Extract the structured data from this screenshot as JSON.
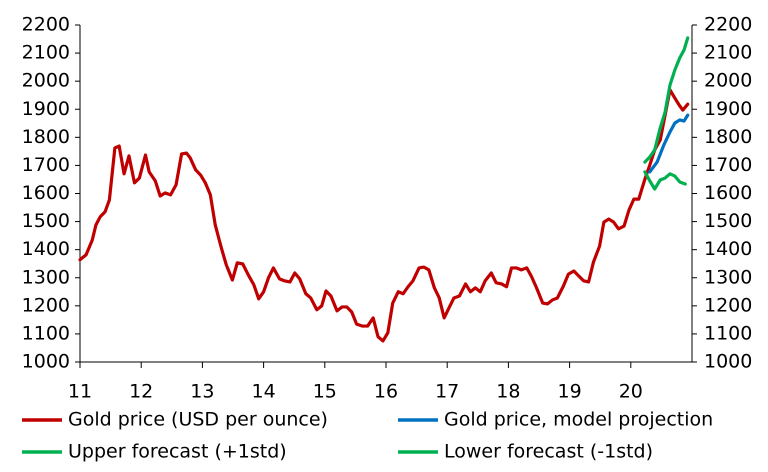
{
  "chart_data": {
    "type": "line",
    "xlim": [
      11,
      21
    ],
    "xticks": [
      11,
      12,
      13,
      14,
      15,
      16,
      17,
      18,
      19,
      20
    ],
    "ylim": [
      1000,
      2200
    ],
    "yticks": [
      1000,
      1100,
      1200,
      1300,
      1400,
      1500,
      1600,
      1700,
      1800,
      1900,
      2000,
      2100,
      2200
    ],
    "y2lim": [
      1000,
      2200
    ],
    "y2ticks": [
      1000,
      1100,
      1200,
      1300,
      1400,
      1500,
      1600,
      1700,
      1800,
      1900,
      2000,
      2100,
      2200
    ],
    "legend": "bottom",
    "series": [
      {
        "name": "Gold price (USD per ounce)",
        "color": "#c00000",
        "x": [
          11.0,
          11.1,
          11.2,
          11.26,
          11.33,
          11.41,
          11.48,
          11.57,
          11.64,
          11.72,
          11.8,
          11.89,
          11.97,
          12.07,
          12.13,
          12.23,
          12.31,
          12.39,
          12.48,
          12.57,
          12.66,
          12.74,
          12.8,
          12.89,
          12.97,
          13.05,
          13.13,
          13.21,
          13.31,
          13.39,
          13.49,
          13.57,
          13.66,
          13.75,
          13.84,
          13.92,
          14.0,
          14.08,
          14.16,
          14.26,
          14.34,
          14.43,
          14.51,
          14.59,
          14.69,
          14.77,
          14.87,
          14.95,
          15.02,
          15.1,
          15.2,
          15.28,
          15.36,
          15.44,
          15.52,
          15.61,
          15.7,
          15.79,
          15.87,
          15.95,
          16.03,
          16.11,
          16.2,
          16.28,
          16.36,
          16.44,
          16.54,
          16.62,
          16.7,
          16.79,
          16.87,
          16.95,
          17.03,
          17.11,
          17.2,
          17.3,
          17.38,
          17.46,
          17.54,
          17.62,
          17.72,
          17.8,
          17.89,
          17.97,
          18.05,
          18.13,
          18.21,
          18.3,
          18.38,
          18.46,
          18.56,
          18.64,
          18.72,
          18.8,
          18.9,
          18.98,
          19.07,
          19.15,
          19.23,
          19.31,
          19.39,
          19.49,
          19.56,
          19.64,
          19.72,
          19.8,
          19.89,
          19.97,
          20.05,
          20.13,
          20.23,
          20.31,
          20.39,
          20.48,
          20.56,
          20.64,
          20.7,
          20.79,
          20.85,
          20.93
        ],
        "values": [
          1364,
          1382,
          1434,
          1488,
          1517,
          1535,
          1577,
          1762,
          1769,
          1670,
          1734,
          1638,
          1655,
          1737,
          1677,
          1645,
          1591,
          1602,
          1595,
          1631,
          1741,
          1744,
          1727,
          1684,
          1666,
          1637,
          1595,
          1488,
          1406,
          1346,
          1292,
          1353,
          1349,
          1310,
          1275,
          1225,
          1250,
          1300,
          1335,
          1296,
          1289,
          1285,
          1317,
          1296,
          1243,
          1228,
          1186,
          1200,
          1253,
          1235,
          1182,
          1196,
          1196,
          1178,
          1135,
          1128,
          1128,
          1157,
          1090,
          1075,
          1104,
          1210,
          1250,
          1243,
          1268,
          1289,
          1335,
          1338,
          1328,
          1264,
          1228,
          1157,
          1193,
          1228,
          1235,
          1278,
          1250,
          1264,
          1250,
          1289,
          1317,
          1282,
          1278,
          1268,
          1335,
          1335,
          1328,
          1335,
          1303,
          1264,
          1210,
          1207,
          1221,
          1228,
          1271,
          1313,
          1324,
          1306,
          1289,
          1285,
          1356,
          1413,
          1498,
          1509,
          1498,
          1474,
          1484,
          1541,
          1580,
          1580,
          1651,
          1701,
          1755,
          1790,
          1879,
          1969,
          1947,
          1915,
          1897,
          1918
        ]
      },
      {
        "name": "Gold price, model projection",
        "color": "#0070c0",
        "x": [
          20.31,
          20.43,
          20.54,
          20.64,
          20.72,
          20.8,
          20.87,
          20.93
        ],
        "values": [
          1677,
          1712,
          1773,
          1819,
          1851,
          1862,
          1858,
          1879
        ]
      },
      {
        "name": "Upper forecast (+1std)",
        "color": "#00b050",
        "x": [
          20.23,
          20.31,
          20.39,
          20.48,
          20.56,
          20.64,
          20.72,
          20.8,
          20.87,
          20.93
        ],
        "values": [
          1712,
          1730,
          1755,
          1833,
          1890,
          1986,
          2040,
          2083,
          2111,
          2154
        ]
      },
      {
        "name": "Lower forecast (-1std)",
        "color": "#00b050",
        "x": [
          20.23,
          20.31,
          20.39,
          20.48,
          20.56,
          20.64,
          20.72,
          20.8,
          20.89
        ],
        "values": [
          1677,
          1645,
          1616,
          1648,
          1655,
          1670,
          1662,
          1641,
          1634
        ]
      }
    ]
  }
}
